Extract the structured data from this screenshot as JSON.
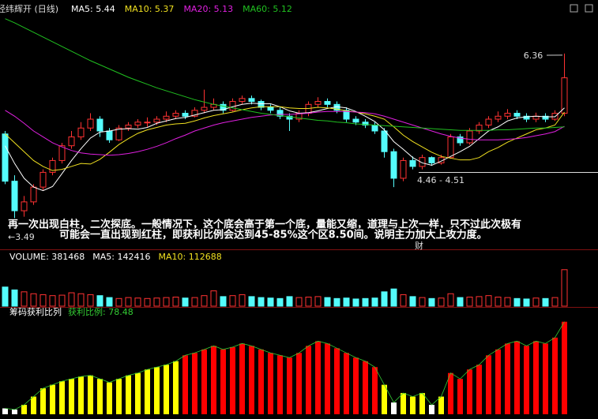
{
  "chart_data": [
    {
      "type": "candlestick",
      "title": "经纬辉开 (日线)",
      "ylim": [
        3.06,
        7.16
      ],
      "up_color": "#ff3232",
      "down_color": "#54fcfc",
      "open": [
        5.0,
        4.2,
        3.7,
        3.85,
        4.1,
        4.35,
        4.55,
        4.8,
        4.95,
        5.1,
        5.25,
        5.05,
        4.9,
        5.1,
        5.15,
        5.2,
        5.2,
        5.25,
        5.3,
        5.35,
        5.3,
        5.4,
        5.45,
        5.5,
        5.4,
        5.55,
        5.6,
        5.55,
        5.45,
        5.4,
        5.3,
        5.25,
        5.35,
        5.5,
        5.55,
        5.5,
        5.4,
        5.25,
        5.2,
        5.15,
        5.05,
        4.7,
        4.25,
        4.55,
        4.45,
        4.6,
        4.51,
        4.6,
        4.95,
        4.85,
        5.05,
        5.15,
        5.25,
        5.3,
        5.35,
        5.3,
        5.25,
        5.3,
        5.25,
        5.35
      ],
      "high": [
        5.05,
        4.3,
        3.95,
        4.15,
        4.4,
        4.6,
        4.85,
        5.05,
        5.2,
        5.35,
        5.3,
        5.1,
        5.15,
        5.2,
        5.25,
        5.28,
        5.3,
        5.38,
        5.4,
        5.4,
        5.45,
        5.75,
        5.6,
        5.55,
        5.6,
        5.65,
        5.65,
        5.58,
        5.5,
        5.45,
        5.35,
        5.4,
        5.55,
        5.62,
        5.6,
        5.55,
        5.45,
        5.3,
        5.25,
        5.2,
        5.1,
        4.75,
        4.6,
        4.62,
        4.65,
        4.62,
        4.65,
        5.0,
        5.0,
        5.1,
        5.2,
        5.3,
        5.38,
        5.42,
        5.4,
        5.35,
        5.36,
        5.35,
        5.4,
        6.36
      ],
      "low": [
        4.15,
        3.49,
        3.6,
        3.8,
        4.05,
        4.3,
        4.5,
        4.75,
        4.9,
        5.05,
        4.95,
        4.85,
        4.88,
        5.05,
        5.1,
        5.12,
        5.15,
        5.2,
        5.25,
        5.25,
        5.28,
        5.35,
        5.4,
        5.35,
        5.38,
        5.5,
        5.5,
        5.4,
        5.35,
        5.25,
        5.05,
        5.2,
        5.3,
        5.45,
        5.45,
        5.35,
        5.2,
        5.15,
        5.1,
        5.0,
        4.6,
        4.1,
        4.2,
        4.4,
        4.4,
        4.46,
        4.48,
        4.58,
        4.8,
        4.82,
        5.0,
        5.1,
        5.2,
        5.25,
        5.25,
        5.2,
        5.2,
        5.2,
        5.22,
        5.3
      ],
      "close": [
        4.2,
        3.7,
        3.85,
        4.1,
        4.35,
        4.55,
        4.8,
        4.95,
        5.1,
        5.25,
        5.05,
        4.9,
        5.1,
        5.15,
        5.2,
        5.2,
        5.25,
        5.3,
        5.35,
        5.3,
        5.4,
        5.45,
        5.5,
        5.4,
        5.55,
        5.6,
        5.55,
        5.45,
        5.4,
        5.3,
        5.25,
        5.35,
        5.5,
        5.55,
        5.5,
        5.4,
        5.25,
        5.2,
        5.15,
        5.05,
        4.7,
        4.25,
        4.55,
        4.45,
        4.6,
        4.51,
        4.6,
        4.95,
        4.85,
        5.05,
        5.15,
        5.25,
        5.3,
        5.35,
        5.3,
        5.25,
        5.3,
        5.25,
        5.35,
        5.95
      ],
      "series": [
        {
          "name": "MA5: 5.44",
          "color": "#ffffff",
          "values": [
            4.8,
            4.5,
            4.25,
            4.1,
            4.04,
            4.11,
            4.33,
            4.55,
            4.75,
            4.93,
            5.03,
            5.05,
            5.08,
            5.09,
            5.08,
            5.11,
            5.18,
            5.22,
            5.26,
            5.28,
            5.32,
            5.36,
            5.4,
            5.41,
            5.46,
            5.5,
            5.52,
            5.51,
            5.51,
            5.46,
            5.39,
            5.35,
            5.36,
            5.39,
            5.43,
            5.46,
            5.44,
            5.38,
            5.3,
            5.21,
            5.07,
            4.87,
            4.74,
            4.6,
            4.51,
            4.47,
            4.54,
            4.62,
            4.7,
            4.79,
            4.92,
            5.05,
            5.12,
            5.22,
            5.27,
            5.29,
            5.3,
            5.29,
            5.29,
            5.44
          ]
        },
        {
          "name": "MA10: 5.37",
          "color": "#f0e020",
          "values": [
            5.0,
            4.85,
            4.7,
            4.55,
            4.45,
            4.38,
            4.4,
            4.45,
            4.5,
            4.49,
            4.57,
            4.69,
            4.82,
            4.92,
            5.01,
            5.07,
            5.11,
            5.15,
            5.17,
            5.18,
            5.22,
            5.27,
            5.31,
            5.34,
            5.37,
            5.41,
            5.44,
            5.46,
            5.46,
            5.46,
            5.44,
            5.43,
            5.43,
            5.45,
            5.44,
            5.42,
            5.39,
            5.37,
            5.34,
            5.3,
            5.25,
            5.12,
            4.98,
            4.87,
            4.78,
            4.69,
            4.62,
            4.59,
            4.56,
            4.56,
            4.6,
            4.7,
            4.77,
            4.86,
            4.93,
            5.0,
            5.07,
            5.1,
            5.15,
            5.37
          ]
        },
        {
          "name": "MA20: 5.13",
          "color": "#e020e0",
          "values": [
            5.4,
            5.3,
            5.18,
            5.05,
            4.95,
            4.85,
            4.78,
            4.72,
            4.68,
            4.66,
            4.65,
            4.64,
            4.65,
            4.67,
            4.7,
            4.74,
            4.79,
            4.85,
            4.92,
            4.98,
            5.05,
            5.1,
            5.15,
            5.19,
            5.22,
            5.25,
            5.28,
            5.3,
            5.32,
            5.33,
            5.33,
            5.34,
            5.35,
            5.37,
            5.38,
            5.38,
            5.38,
            5.37,
            5.36,
            5.34,
            5.3,
            5.25,
            5.2,
            5.15,
            5.1,
            5.05,
            5.0,
            4.96,
            4.93,
            4.91,
            4.9,
            4.9,
            4.9,
            4.91,
            4.92,
            4.94,
            4.97,
            5.0,
            5.04,
            5.13
          ]
        },
        {
          "name": "MA60: 5.12",
          "color": "#20c020",
          "values": [
            6.95,
            6.88,
            6.8,
            6.72,
            6.64,
            6.56,
            6.48,
            6.4,
            6.32,
            6.24,
            6.17,
            6.1,
            6.03,
            5.96,
            5.9,
            5.84,
            5.78,
            5.73,
            5.68,
            5.63,
            5.58,
            5.54,
            5.5,
            5.47,
            5.44,
            5.41,
            5.38,
            5.35,
            5.33,
            5.31,
            5.29,
            5.27,
            5.25,
            5.23,
            5.22,
            5.2,
            5.19,
            5.17,
            5.16,
            5.15,
            5.14,
            5.13,
            5.12,
            5.11,
            5.1,
            5.09,
            5.08,
            5.07,
            5.06,
            5.06,
            5.06,
            5.06,
            5.07,
            5.07,
            5.08,
            5.09,
            5.1,
            5.1,
            5.11,
            5.12
          ]
        }
      ],
      "annotations": [
        "6.36",
        "←3.49",
        "4.46 - 4.51",
        "再一次出现白柱，二次探底。一般情况下，这个底会高于第一个底，量能又缩，道理与上次一样，只不过此次极有",
        "可能会一直出现到红柱，即获利比例会达到45-85%这个区8.50间。说明主力加大上攻力度。",
        "财"
      ]
    },
    {
      "type": "bar",
      "title": "VOLUME: 381468",
      "ylim": [
        0,
        520000
      ],
      "legend": [
        {
          "text": "MA5: 142416",
          "color": "#ffffff"
        },
        {
          "text": "MA10: 112688",
          "color": "#f0e020"
        }
      ],
      "values": [
        200000,
        170000,
        150000,
        130000,
        120000,
        110000,
        115000,
        140000,
        130000,
        120000,
        110000,
        90000,
        80000,
        90000,
        85000,
        80000,
        85000,
        90000,
        95000,
        85000,
        90000,
        110000,
        160000,
        100000,
        110000,
        120000,
        100000,
        90000,
        85000,
        80000,
        100000,
        90000,
        95000,
        100000,
        90000,
        80000,
        85000,
        75000,
        80000,
        85000,
        150000,
        180000,
        120000,
        100000,
        90000,
        80000,
        85000,
        130000,
        90000,
        95000,
        100000,
        110000,
        95000,
        90000,
        80000,
        75000,
        85000,
        80000,
        90000,
        381468
      ]
    },
    {
      "type": "bar",
      "title": "筹码获利比列",
      "subtitle": "获利比例: 78.48",
      "ylim": [
        0,
        87
      ],
      "values": [
        5,
        4,
        8,
        15,
        22,
        25,
        28,
        30,
        32,
        33,
        30,
        27,
        30,
        33,
        35,
        38,
        40,
        42,
        45,
        50,
        52,
        55,
        58,
        55,
        57,
        60,
        58,
        55,
        52,
        50,
        48,
        52,
        58,
        62,
        60,
        56,
        52,
        48,
        45,
        40,
        25,
        10,
        18,
        15,
        18,
        8,
        15,
        35,
        30,
        38,
        42,
        50,
        55,
        60,
        62,
        58,
        62,
        60,
        65,
        78.48
      ],
      "colors": [
        "#ffffff",
        "#ffffff",
        "#ffff00",
        "#ffff00",
        "#ffff00",
        "#ffff00",
        "#ffff00",
        "#ffff00",
        "#ffff00",
        "#ffff00",
        "#ffff00",
        "#ffff00",
        "#ffff00",
        "#ffff00",
        "#ffff00",
        "#ffff00",
        "#ffff00",
        "#ffff00",
        "#ffff00",
        "#ff0000",
        "#ff0000",
        "#ff0000",
        "#ff0000",
        "#ff0000",
        "#ff0000",
        "#ff0000",
        "#ff0000",
        "#ff0000",
        "#ff0000",
        "#ff0000",
        "#ff0000",
        "#ff0000",
        "#ff0000",
        "#ff0000",
        "#ff0000",
        "#ff0000",
        "#ff0000",
        "#ff0000",
        "#ff0000",
        "#ff0000",
        "#ffff00",
        "#ffffff",
        "#ffff00",
        "#ffff00",
        "#ffff00",
        "#ffffff",
        "#ffff00",
        "#ff0000",
        "#ff0000",
        "#ff0000",
        "#ff0000",
        "#ff0000",
        "#ff0000",
        "#ff0000",
        "#ff0000",
        "#ff0000",
        "#ff0000",
        "#ff0000",
        "#ff0000",
        "#ff0000"
      ]
    }
  ]
}
